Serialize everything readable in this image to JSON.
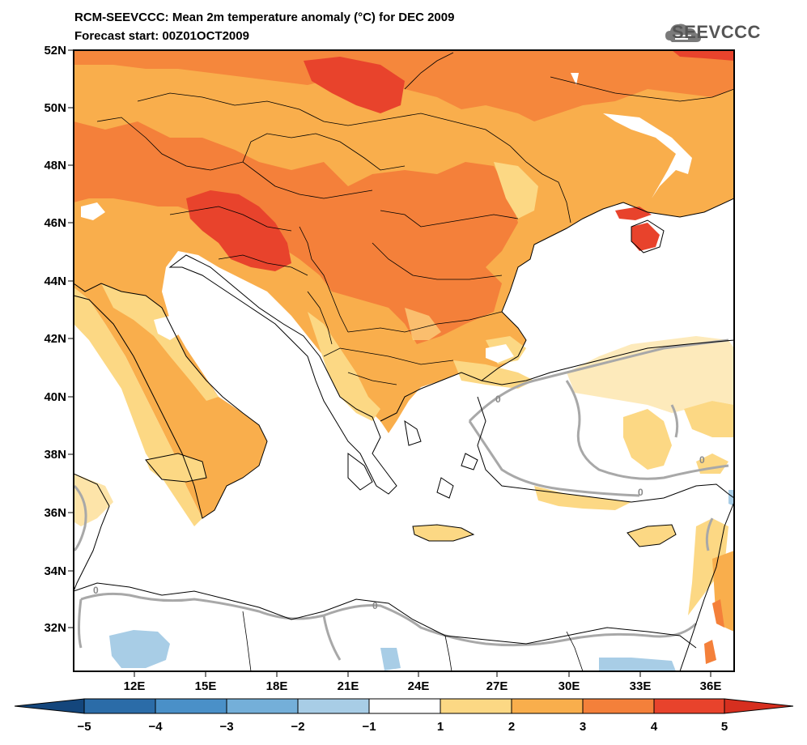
{
  "header": {
    "title_line1": "RCM-SEEVCCC: Mean 2m temperature anomaly (°C) for DEC 2009",
    "title_line2": "Forecast start: 00Z01OCT2009",
    "logo_text": "SEEVCCC",
    "logo_icon": "cloud-icon"
  },
  "map": {
    "lat_labels": [
      "52N",
      "50N",
      "48N",
      "46N",
      "44N",
      "42N",
      "40N",
      "38N",
      "36N",
      "34N",
      "32N"
    ],
    "lon_labels": [
      "12E",
      "15E",
      "18E",
      "21E",
      "24E",
      "27E",
      "30E",
      "33E",
      "36E"
    ],
    "contour_label": "0"
  },
  "colorbar": {
    "labels": [
      "−5",
      "−4",
      "−3",
      "−2",
      "−1",
      "1",
      "2",
      "3",
      "4",
      "5"
    ],
    "colors": [
      "#14467c",
      "#2b6ca8",
      "#4a90c8",
      "#74afd9",
      "#a8cde6",
      "#ffffff",
      "#fcd884",
      "#f9ae4c",
      "#f4803a",
      "#e8432c",
      "#d62f1f"
    ]
  }
}
